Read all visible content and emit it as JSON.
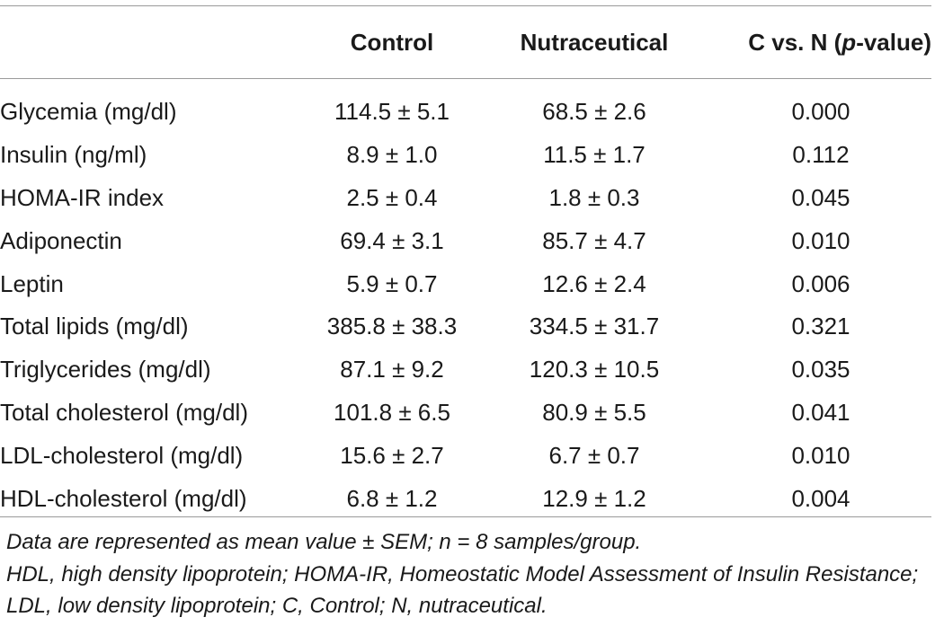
{
  "table": {
    "headers": {
      "label": "",
      "control": "Control",
      "nutraceutical": "Nutraceutical",
      "comparison_prefix": "C vs. N (",
      "comparison_p": "p",
      "comparison_suffix": "-value)"
    },
    "rows": [
      {
        "label": "Glycemia (mg/dl)",
        "control": "114.5 ± 5.1",
        "nutraceutical": "68.5 ± 2.6",
        "p": "0.000"
      },
      {
        "label": "Insulin (ng/ml)",
        "control": "8.9 ± 1.0",
        "nutraceutical": "11.5 ± 1.7",
        "p": "0.112"
      },
      {
        "label": "HOMA-IR index",
        "control": "2.5 ± 0.4",
        "nutraceutical": "1.8 ± 0.3",
        "p": "0.045"
      },
      {
        "label": "Adiponectin",
        "control": "69.4 ± 3.1",
        "nutraceutical": "85.7 ± 4.7",
        "p": "0.010"
      },
      {
        "label": "Leptin",
        "control": "5.9 ± 0.7",
        "nutraceutical": "12.6 ± 2.4",
        "p": "0.006"
      },
      {
        "label": "Total lipids (mg/dl)",
        "control": "385.8 ± 38.3",
        "nutraceutical": "334.5 ± 31.7",
        "p": "0.321"
      },
      {
        "label": "Triglycerides (mg/dl)",
        "control": "87.1 ± 9.2",
        "nutraceutical": "120.3 ± 10.5",
        "p": "0.035"
      },
      {
        "label": "Total cholesterol (mg/dl)",
        "control": "101.8 ± 6.5",
        "nutraceutical": "80.9 ± 5.5",
        "p": "0.041"
      },
      {
        "label": "LDL-cholesterol (mg/dl)",
        "control": "15.6 ± 2.7",
        "nutraceutical": "6.7 ± 0.7",
        "p": "0.010"
      },
      {
        "label": "HDL-cholesterol (mg/dl)",
        "control": "6.8 ± 1.2",
        "nutraceutical": "12.9 ± 1.2",
        "p": "0.004"
      }
    ]
  },
  "footnote": {
    "line1": "Data are represented as mean value ± SEM; n = 8 samples/group.",
    "line2": "HDL, high density lipoprotein; HOMA-IR, Homeostatic Model Assessment of Insulin Resistance; LDL, low density lipoprotein; C, Control; N, nutraceutical."
  }
}
